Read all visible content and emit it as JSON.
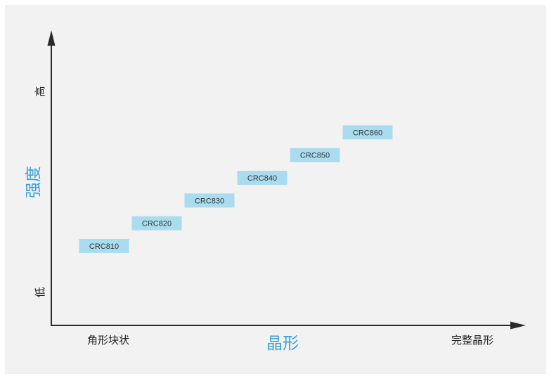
{
  "chart_data": {
    "type": "scatter",
    "xlabel": "晶形",
    "ylabel": "强度",
    "x_tick_left": "角形块状",
    "x_tick_right": "完整晶形",
    "y_tick_top": "高",
    "y_tick_bottom": "低",
    "note": "",
    "points": [
      {
        "label": "CRC810",
        "x": 1,
        "y": 1
      },
      {
        "label": "CRC820",
        "x": 2,
        "y": 2
      },
      {
        "label": "CRC830",
        "x": 3,
        "y": 3
      },
      {
        "label": "CRC840",
        "x": 4,
        "y": 4
      },
      {
        "label": "CRC850",
        "x": 5,
        "y": 5
      },
      {
        "label": "CRC860",
        "x": 6,
        "y": 6
      }
    ],
    "xlim": [
      0,
      9
    ],
    "ylim": [
      -2.5,
      10.5
    ],
    "grid": false,
    "legend": "none"
  },
  "colors": {
    "box": "#aadcf0",
    "axis": "#2a2a2a",
    "axis_title": "#3aa0d8",
    "background": "#f2f2f2"
  }
}
